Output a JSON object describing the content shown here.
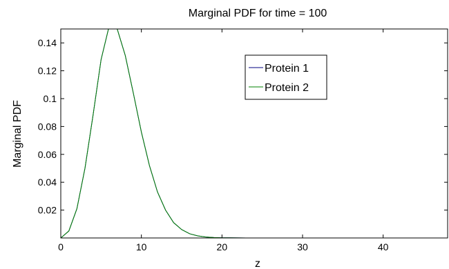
{
  "chart_data": {
    "type": "line",
    "title": "Marginal PDF for time = 100",
    "xlabel": "z",
    "ylabel": "Marginal PDF",
    "xlim": [
      0,
      48
    ],
    "ylim": [
      0,
      0.15
    ],
    "xticks": [
      0,
      10,
      20,
      30,
      40
    ],
    "xtick_labels": [
      "0",
      "10",
      "20",
      "30",
      "40"
    ],
    "yticks": [
      0.02,
      0.04,
      0.06,
      0.08,
      0.1,
      0.12,
      0.14
    ],
    "ytick_labels": [
      "0.02",
      "0.04",
      "0.06",
      "0.08",
      "0.1",
      "0.12",
      "0.14"
    ],
    "grid": false,
    "legend_position": "top-right",
    "x": [
      0,
      1,
      2,
      3,
      4,
      5,
      6,
      7,
      8,
      9,
      10,
      11,
      12,
      13,
      14,
      15,
      16,
      17,
      18,
      19,
      20,
      21,
      22,
      23,
      24,
      25,
      26,
      27,
      28,
      29,
      30,
      31,
      32,
      33,
      34,
      35,
      36,
      37,
      38,
      39,
      40,
      41,
      42,
      43,
      44,
      45,
      46,
      47,
      48
    ],
    "series": [
      {
        "name": "Protein 1",
        "color": "#000080",
        "values": [
          0,
          0.005,
          0.021,
          0.05,
          0.088,
          0.128,
          0.152,
          0.15,
          0.131,
          0.104,
          0.076,
          0.052,
          0.033,
          0.02,
          0.011,
          0.006,
          0.003,
          0.0015,
          0.0007,
          0.0003,
          0.00015,
          0.0001,
          5e-05,
          0,
          0,
          0,
          0,
          0,
          0,
          0,
          0,
          0,
          0,
          0,
          0,
          0,
          0,
          0,
          0,
          0,
          0,
          0,
          0,
          0,
          0,
          0,
          0,
          0,
          0
        ]
      },
      {
        "name": "Protein 2",
        "color": "#008000",
        "values": [
          0,
          0.005,
          0.021,
          0.05,
          0.088,
          0.128,
          0.152,
          0.15,
          0.131,
          0.104,
          0.076,
          0.052,
          0.033,
          0.02,
          0.011,
          0.006,
          0.003,
          0.0015,
          0.0007,
          0.0003,
          0.00015,
          0.0001,
          5e-05,
          0,
          0,
          0,
          0,
          0,
          0,
          0,
          0,
          0,
          0,
          0,
          0,
          0,
          0,
          0,
          0,
          0,
          0,
          0,
          0,
          0,
          0,
          0,
          0,
          0,
          0
        ]
      }
    ]
  }
}
